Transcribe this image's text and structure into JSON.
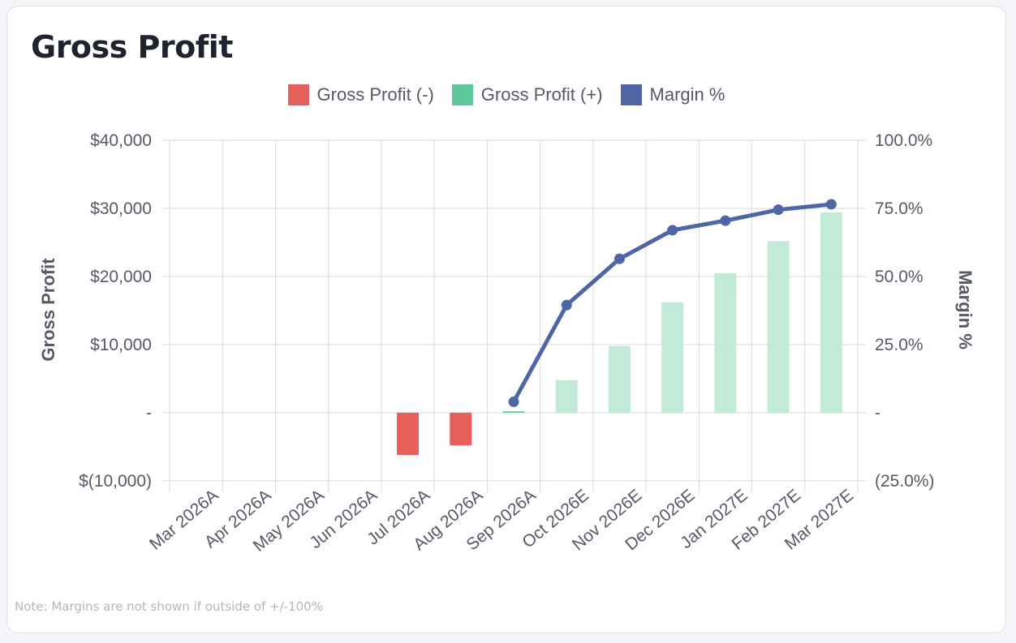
{
  "title": "Gross Profit",
  "note": "Note: Margins are not shown if outside of +/-100%",
  "colors": {
    "negative": "#e5605a",
    "positive": "#5fc99a",
    "positive_light": "#c2ead8",
    "margin": "#4e66a4",
    "grid": "#dadada"
  },
  "legend": [
    {
      "label": "Gross Profit (-)",
      "color": "#e5605a"
    },
    {
      "label": "Gross Profit (+)",
      "color": "#5fc99a"
    },
    {
      "label": "Margin %",
      "color": "#4e66a4"
    }
  ],
  "chart_data": {
    "type": "bar",
    "title": "Gross Profit",
    "categories": [
      "Mar 2026A",
      "Apr 2026A",
      "May 2026A",
      "Jun 2026A",
      "Jul 2026A",
      "Aug 2026A",
      "Sep 2026A",
      "Oct 2026E",
      "Nov 2026E",
      "Dec 2026E",
      "Jan 2027E",
      "Feb 2027E",
      "Mar 2027E"
    ],
    "series": [
      {
        "name": "Gross Profit",
        "type": "bar",
        "axis": "left",
        "values": [
          0,
          0,
          0,
          0,
          -6200,
          -4800,
          200,
          4800,
          9800,
          16200,
          20500,
          25200,
          29400
        ]
      },
      {
        "name": "Margin %",
        "type": "line",
        "axis": "right",
        "values": [
          null,
          null,
          null,
          null,
          null,
          null,
          4,
          39.5,
          56.5,
          67,
          70.5,
          74.5,
          76.5
        ]
      }
    ],
    "ylabel": "Gross Profit",
    "y2label": "Margin %",
    "ylim": [
      -10000,
      40000
    ],
    "y2lim": [
      -25,
      100
    ],
    "yticks": [
      {
        "value": 40000,
        "label": "$40,000"
      },
      {
        "value": 30000,
        "label": "$30,000"
      },
      {
        "value": 20000,
        "label": "$20,000"
      },
      {
        "value": 10000,
        "label": "$10,000"
      },
      {
        "value": 0,
        "label": "-"
      },
      {
        "value": -10000,
        "label": "$(10,000)"
      }
    ],
    "y2ticks": [
      {
        "value": 100,
        "label": "100.0%"
      },
      {
        "value": 75,
        "label": "75.0%"
      },
      {
        "value": 50,
        "label": "50.0%"
      },
      {
        "value": 25,
        "label": "25.0%"
      },
      {
        "value": 0,
        "label": "-"
      },
      {
        "value": -25,
        "label": "(25.0%)"
      }
    ],
    "grid": true,
    "legend_position": "top"
  }
}
